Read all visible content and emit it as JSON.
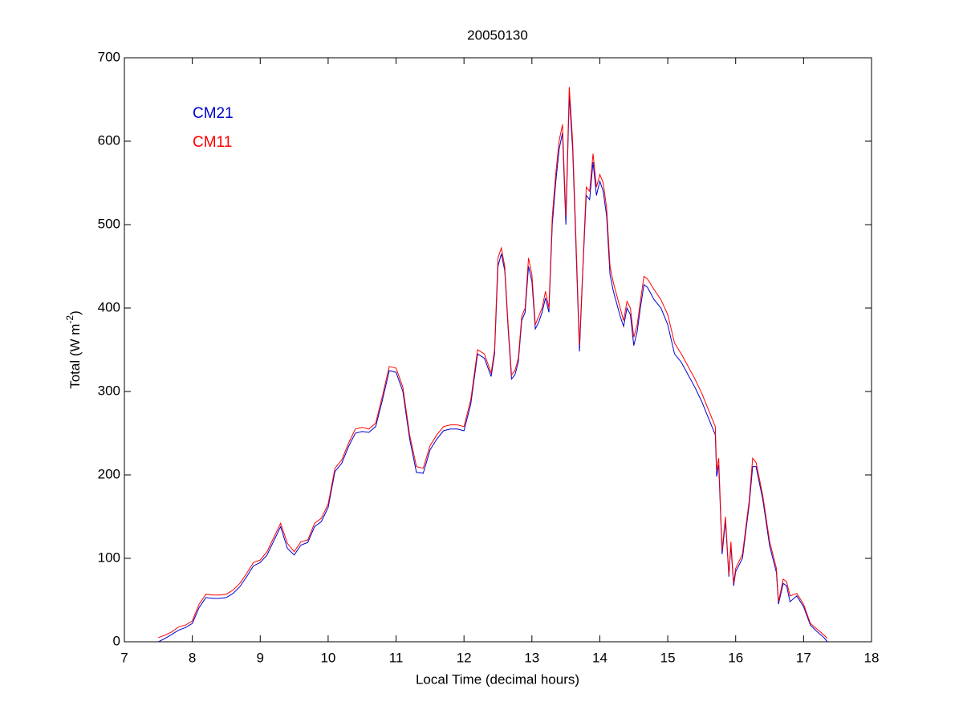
{
  "chart_data": {
    "type": "line",
    "title": "20050130",
    "xlabel": "Local Time (decimal hours)",
    "ylabel_parts": [
      "Total (W m",
      "-2",
      ")"
    ],
    "legend": "upper left",
    "xlim": [
      7,
      18
    ],
    "xticks": [
      7,
      8,
      9,
      10,
      11,
      12,
      13,
      14,
      15,
      16,
      17,
      18
    ],
    "ylim": [
      0,
      700
    ],
    "yticks": [
      0,
      100,
      200,
      300,
      400,
      500,
      600,
      700
    ],
    "x": [
      7.5,
      7.6,
      7.7,
      7.8,
      7.9,
      8.0,
      8.1,
      8.2,
      8.3,
      8.4,
      8.5,
      8.6,
      8.7,
      8.8,
      8.9,
      9.0,
      9.1,
      9.2,
      9.3,
      9.4,
      9.5,
      9.6,
      9.7,
      9.8,
      9.9,
      10.0,
      10.1,
      10.2,
      10.3,
      10.4,
      10.5,
      10.6,
      10.7,
      10.8,
      10.9,
      11.0,
      11.1,
      11.2,
      11.3,
      11.4,
      11.5,
      11.6,
      11.7,
      11.8,
      11.9,
      12.0,
      12.1,
      12.2,
      12.3,
      12.4,
      12.45,
      12.5,
      12.55,
      12.6,
      12.65,
      12.7,
      12.75,
      12.8,
      12.85,
      12.9,
      12.95,
      13.0,
      13.05,
      13.1,
      13.15,
      13.2,
      13.25,
      13.3,
      13.35,
      13.4,
      13.45,
      13.5,
      13.55,
      13.6,
      13.65,
      13.7,
      13.75,
      13.8,
      13.85,
      13.9,
      13.95,
      14.0,
      14.05,
      14.1,
      14.15,
      14.2,
      14.25,
      14.3,
      14.35,
      14.4,
      14.45,
      14.5,
      14.55,
      14.6,
      14.65,
      14.7,
      14.8,
      14.9,
      15.0,
      15.1,
      15.2,
      15.3,
      15.4,
      15.5,
      15.6,
      15.7,
      15.72,
      15.75,
      15.8,
      15.85,
      15.9,
      15.93,
      15.97,
      16.0,
      16.1,
      16.2,
      16.25,
      16.3,
      16.4,
      16.5,
      16.6,
      16.63,
      16.7,
      16.75,
      16.8,
      16.9,
      17.0,
      17.1,
      17.2,
      17.3,
      17.35
    ],
    "series": [
      {
        "name": "CM21",
        "color": "#0000cc",
        "values": [
          0,
          4,
          9,
          14,
          17,
          22,
          41,
          53,
          52,
          52,
          53,
          58,
          66,
          78,
          91,
          95,
          104,
          121,
          138,
          112,
          104,
          116,
          119,
          138,
          144,
          161,
          204,
          214,
          234,
          250,
          252,
          251,
          258,
          290,
          325,
          323,
          300,
          243,
          203,
          202,
          230,
          243,
          253,
          255,
          255,
          253,
          285,
          345,
          340,
          318,
          345,
          450,
          465,
          445,
          375,
          315,
          320,
          335,
          385,
          395,
          450,
          432,
          375,
          383,
          395,
          412,
          395,
          500,
          550,
          590,
          610,
          500,
          655,
          590,
          470,
          348,
          445,
          535,
          530,
          575,
          535,
          552,
          540,
          510,
          440,
          420,
          405,
          390,
          378,
          400,
          392,
          355,
          372,
          402,
          428,
          425,
          410,
          400,
          380,
          345,
          335,
          320,
          305,
          288,
          268,
          248,
          198,
          212,
          105,
          145,
          78,
          115,
          67,
          84,
          100,
          165,
          210,
          210,
          170,
          115,
          83,
          45,
          70,
          67,
          48,
          55,
          42,
          20,
          12,
          5,
          0
        ]
      },
      {
        "name": "CM11",
        "color": "#ff0000",
        "values": [
          5,
          8,
          12,
          18,
          20,
          25,
          45,
          57,
          56,
          56,
          57,
          62,
          70,
          82,
          95,
          98,
          108,
          125,
          142,
          118,
          108,
          120,
          122,
          142,
          148,
          165,
          208,
          218,
          238,
          255,
          257,
          255,
          262,
          295,
          330,
          328,
          305,
          248,
          210,
          208,
          235,
          248,
          258,
          260,
          260,
          258,
          290,
          350,
          345,
          322,
          350,
          460,
          472,
          450,
          380,
          320,
          325,
          340,
          390,
          400,
          460,
          440,
          380,
          390,
          400,
          420,
          400,
          510,
          560,
          600,
          620,
          510,
          665,
          600,
          480,
          355,
          450,
          545,
          540,
          585,
          545,
          560,
          550,
          520,
          450,
          430,
          415,
          400,
          385,
          408,
          400,
          365,
          380,
          410,
          438,
          435,
          422,
          410,
          392,
          358,
          345,
          330,
          315,
          298,
          278,
          258,
          205,
          220,
          110,
          150,
          80,
          120,
          70,
          88,
          105,
          170,
          220,
          215,
          175,
          120,
          88,
          48,
          75,
          72,
          55,
          58,
          45,
          22,
          15,
          8,
          4
        ]
      }
    ]
  }
}
